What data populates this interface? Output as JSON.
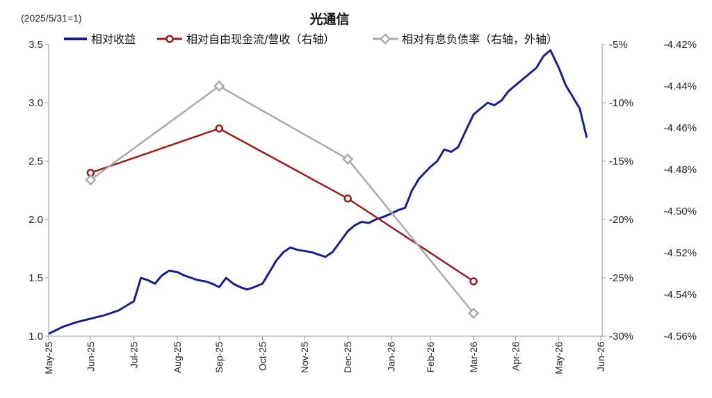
{
  "chart_data": {
    "type": "line",
    "title": "光通信",
    "subtitle": "(2025/5/31=1)",
    "x_tick_labels": [
      "May-25",
      "Jun-25",
      "Jul-25",
      "Aug-25",
      "Sep-25",
      "Oct-25",
      "Nov-25",
      "Dec-25",
      "Jan-26",
      "Feb-26",
      "Mar-26",
      "Apr-26",
      "May-26",
      "Jun-26"
    ],
    "left_axis": {
      "ylim": [
        1.0,
        3.5
      ],
      "ticks": [
        "1.0",
        "1.5",
        "2.0",
        "2.5",
        "3.0",
        "3.5"
      ]
    },
    "right_axis": {
      "ylim": [
        -30,
        -5
      ],
      "ticks": [
        "-5%",
        "-10%",
        "-15%",
        "-20%",
        "-25%",
        "-30%"
      ]
    },
    "outer_axis": {
      "ylim": [
        -4.56,
        -4.42
      ],
      "ticks": [
        "-4.42%",
        "-4.44%",
        "-4.46%",
        "-4.48%",
        "-4.50%",
        "-4.52%",
        "-4.54%",
        "-4.56%"
      ]
    },
    "legend_placement": "top",
    "series": [
      {
        "name": "相对收益",
        "axis": "left",
        "color": "#1a1f8c",
        "x": [
          "2025-05-31",
          "2025-06-10",
          "2025-06-20",
          "2025-06-30",
          "2025-07-10",
          "2025-07-20",
          "2025-07-31",
          "2025-08-05",
          "2025-08-10",
          "2025-08-15",
          "2025-08-20",
          "2025-08-25",
          "2025-08-31",
          "2025-09-05",
          "2025-09-10",
          "2025-09-15",
          "2025-09-20",
          "2025-09-25",
          "2025-09-30",
          "2025-10-05",
          "2025-10-10",
          "2025-10-15",
          "2025-10-20",
          "2025-10-25",
          "2025-10-31",
          "2025-11-05",
          "2025-11-10",
          "2025-11-15",
          "2025-11-20",
          "2025-11-25",
          "2025-11-30",
          "2025-12-05",
          "2025-12-10",
          "2025-12-15",
          "2025-12-20",
          "2025-12-25",
          "2025-12-31",
          "2026-01-05",
          "2026-01-10",
          "2026-01-15",
          "2026-01-20",
          "2026-01-25",
          "2026-01-31",
          "2026-02-05",
          "2026-02-10",
          "2026-02-15",
          "2026-02-20",
          "2026-02-28",
          "2026-03-05",
          "2026-03-10",
          "2026-03-15",
          "2026-03-20",
          "2026-03-25",
          "2026-03-31",
          "2026-04-05",
          "2026-04-10",
          "2026-04-15",
          "2026-04-20",
          "2026-04-25",
          "2026-04-30",
          "2026-05-05",
          "2026-05-10",
          "2026-05-15",
          "2026-05-20",
          "2026-05-25",
          "2026-05-31",
          "2026-06-05",
          "2026-06-10",
          "2026-06-15",
          "2026-06-20"
        ],
        "values": [
          1.02,
          1.08,
          1.12,
          1.15,
          1.18,
          1.22,
          1.3,
          1.5,
          1.48,
          1.45,
          1.52,
          1.56,
          1.55,
          1.52,
          1.5,
          1.48,
          1.47,
          1.45,
          1.42,
          1.5,
          1.45,
          1.42,
          1.4,
          1.42,
          1.45,
          1.55,
          1.65,
          1.72,
          1.76,
          1.74,
          1.73,
          1.72,
          1.7,
          1.68,
          1.72,
          1.8,
          1.9,
          1.95,
          1.98,
          1.97,
          2.0,
          2.02,
          2.05,
          2.08,
          2.1,
          2.25,
          2.35,
          2.45,
          2.5,
          2.6,
          2.58,
          2.62,
          2.75,
          2.9,
          2.95,
          3.0,
          2.98,
          3.02,
          3.1,
          3.15,
          3.2,
          3.25,
          3.3,
          3.4,
          3.45,
          3.3,
          3.15,
          3.05,
          2.95,
          2.7
        ]
      },
      {
        "name": "相对自由现金流/营收（右轴）",
        "axis": "right",
        "color": "#9b1b1b",
        "x": [
          "2025-06-30",
          "2025-09-30",
          "2025-12-31",
          "2026-03-31"
        ],
        "values": [
          -16.0,
          -12.2,
          -18.2,
          -25.3
        ]
      },
      {
        "name": "相对有息负债率（右轴，外轴）",
        "axis": "outer",
        "color": "#aaaaaa",
        "x": [
          "2025-06-30",
          "2025-09-30",
          "2025-12-31",
          "2026-03-31"
        ],
        "values": [
          -4.485,
          -4.44,
          -4.475,
          -4.549
        ]
      }
    ]
  }
}
